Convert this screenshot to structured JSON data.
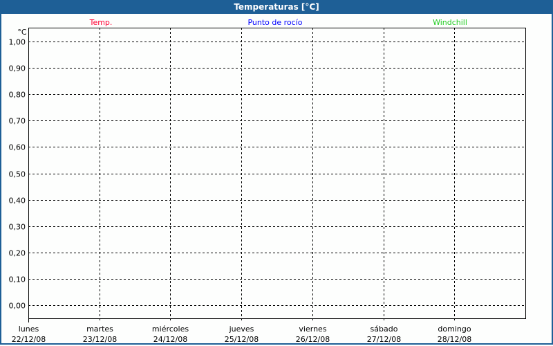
{
  "window": {
    "title": "Temperaturas [°C]"
  },
  "chart_data": {
    "type": "line",
    "title": "Temperaturas [°C]",
    "ylabel": "°C",
    "ylim": [
      0,
      1
    ],
    "yticks": [
      "1,00",
      "0,90",
      "0,80",
      "0,70",
      "0,60",
      "0,50",
      "0,40",
      "0,30",
      "0,20",
      "0,10",
      "0,00"
    ],
    "x_categories": [
      {
        "day": "lunes",
        "date": "22/12/08"
      },
      {
        "day": "martes",
        "date": "23/12/08"
      },
      {
        "day": "miércoles",
        "date": "24/12/08"
      },
      {
        "day": "jueves",
        "date": "25/12/08"
      },
      {
        "day": "viernes",
        "date": "26/12/08"
      },
      {
        "day": "sábado",
        "date": "27/12/08"
      },
      {
        "day": "domingo",
        "date": "28/12/08"
      }
    ],
    "grid": true,
    "legend_placement": "top",
    "series": [
      {
        "name": "Temp.",
        "color": "#ff0033",
        "values": []
      },
      {
        "name": "Punto de rocío",
        "color": "#0000ff",
        "values": []
      },
      {
        "name": "Windchill",
        "color": "#22cc22",
        "values": []
      }
    ]
  }
}
